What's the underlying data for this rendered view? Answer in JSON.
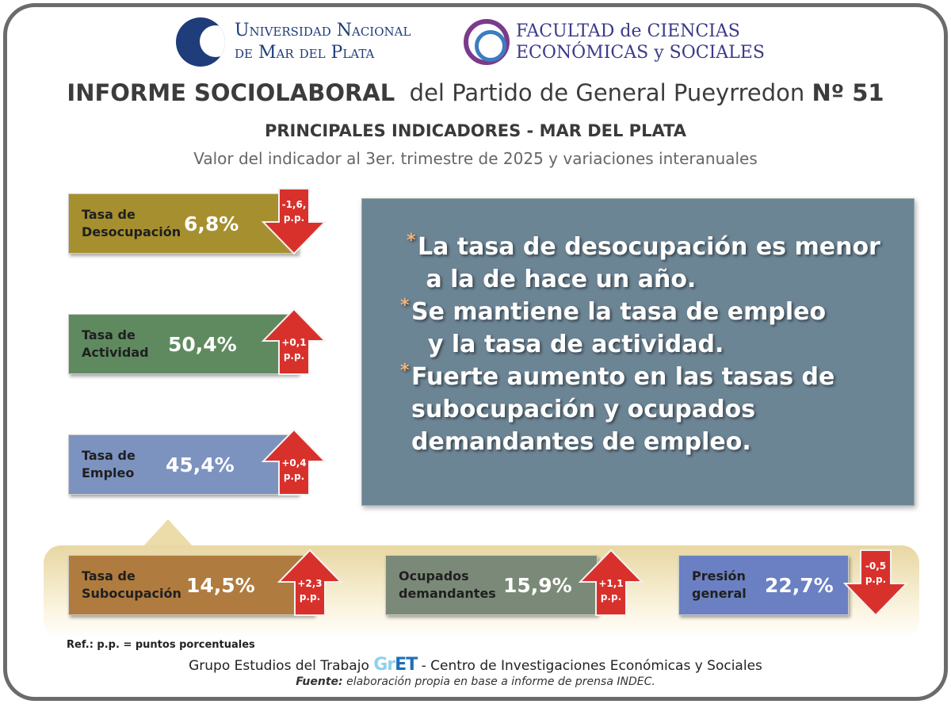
{
  "header": {
    "univ_line1": "Universidad Nacional",
    "univ_line2": "de Mar del Plata",
    "fac_line1": "FACULTAD de CIENCIAS",
    "fac_line2": "ECONÓMICAS y SOCIALES"
  },
  "title": {
    "bold": "INFORME SOCIOLABORAL",
    "rest": "del Partido de General Pueyrredon",
    "number": "Nº 51"
  },
  "subtitle": "PRINCIPALES INDICADORES - MAR DEL PLATA",
  "description": "Valor del indicador al 3er. trimestre de 2025 y variaciones interanuales",
  "indicators": [
    {
      "label1": "Tasa de",
      "label2": "Desocupación",
      "value": "6,8%",
      "change": "-1,6,",
      "unit": "p.p.",
      "direction": "down",
      "color": "#a68f2e"
    },
    {
      "label1": "Tasa de",
      "label2": "Actividad",
      "value": "50,4%",
      "change": "+0,1",
      "unit": "p.p.",
      "direction": "up",
      "color": "#5f8a5f"
    },
    {
      "label1": "Tasa de",
      "label2": "Empleo",
      "value": "45,4%",
      "change": "+0,4",
      "unit": "p.p.",
      "direction": "up",
      "color": "#7c93c0"
    },
    {
      "label1": "Tasa de",
      "label2": "Subocupación",
      "value": "14,5%",
      "change": "+2,3",
      "unit": "p.p.",
      "direction": "up",
      "color": "#b07b3e"
    },
    {
      "label1": "Ocupados",
      "label2": "demandantes",
      "value": "15,9%",
      "change": "+1,1",
      "unit": "p.p.",
      "direction": "up",
      "color": "#7b8a78"
    },
    {
      "label1": "Presión",
      "label2": "general",
      "value": "22,7%",
      "change": "-0,5",
      "unit": "p.p.",
      "direction": "down",
      "color": "#6a80c2"
    }
  ],
  "highlights": [
    {
      "line1": "La tasa de desocupación es menor",
      "line2": "a la de hace un año."
    },
    {
      "line1": "Se mantiene la tasa de empleo",
      "line2": "y la tasa de actividad."
    },
    {
      "line1": "Fuerte aumento en las tasas de",
      "line2": "subocupación y ocupados",
      "line3": "demandantes de empleo."
    }
  ],
  "footer": {
    "ref": "Ref.: p.p. = puntos porcentuales",
    "group_left": "Grupo Estudios del Trabajo",
    "logo_a": "Gr",
    "logo_b": "ET",
    "group_right": "- Centro de Investigaciones Económicas y Sociales",
    "source_label": "Fuente:",
    "source_text": "elaboración propia en base a informe de prensa INDEC."
  },
  "arrow_color": "#d8312c"
}
